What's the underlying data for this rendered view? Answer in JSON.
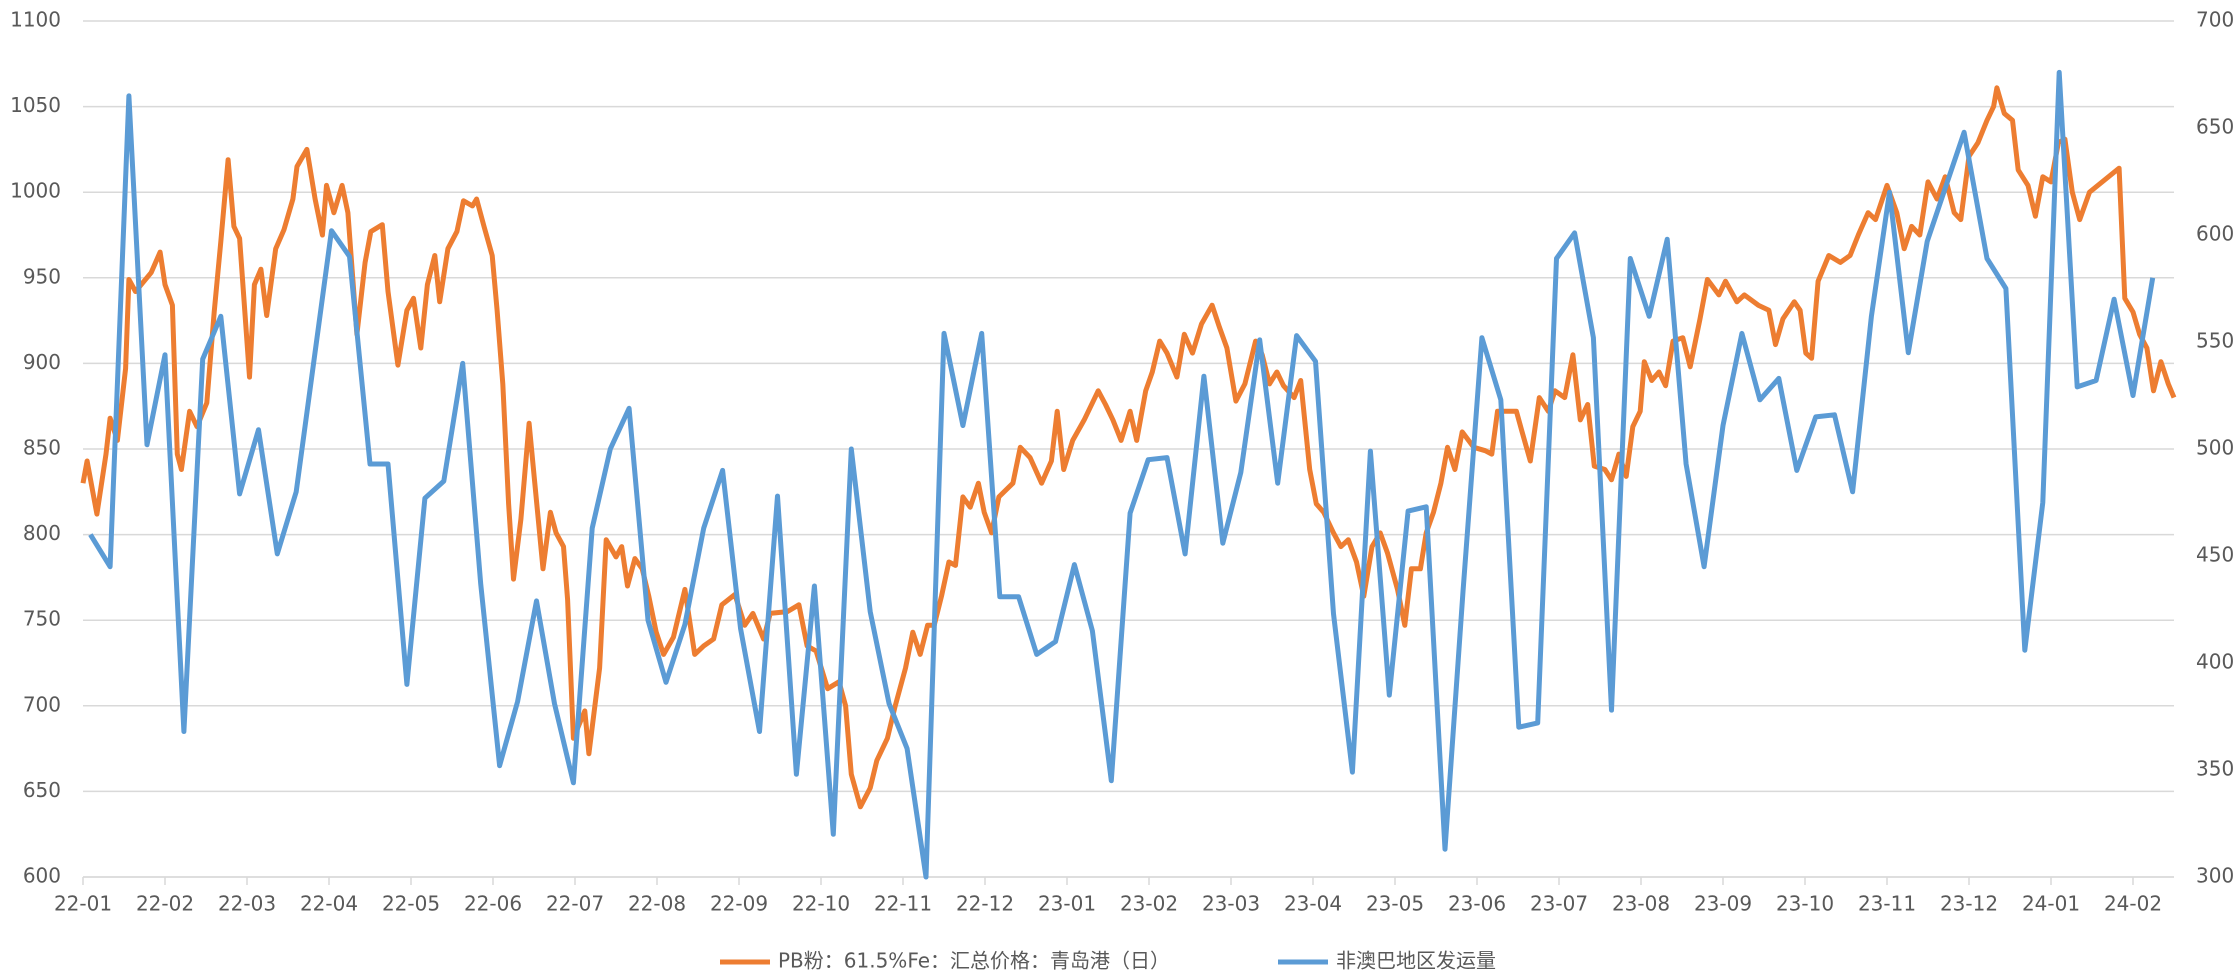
{
  "chart_data": {
    "type": "line",
    "xlim": [
      0,
      25.5
    ],
    "xticks": [
      {
        "value": 0,
        "label": "22-01"
      },
      {
        "value": 1,
        "label": "22-02"
      },
      {
        "value": 2,
        "label": "22-03"
      },
      {
        "value": 3,
        "label": "22-04"
      },
      {
        "value": 4,
        "label": "22-05"
      },
      {
        "value": 5,
        "label": "22-06"
      },
      {
        "value": 6,
        "label": "22-07"
      },
      {
        "value": 7,
        "label": "22-08"
      },
      {
        "value": 8,
        "label": "22-09"
      },
      {
        "value": 9,
        "label": "22-10"
      },
      {
        "value": 10,
        "label": "22-11"
      },
      {
        "value": 11,
        "label": "22-12"
      },
      {
        "value": 12,
        "label": "23-01"
      },
      {
        "value": 13,
        "label": "23-02"
      },
      {
        "value": 14,
        "label": "23-03"
      },
      {
        "value": 15,
        "label": "23-04"
      },
      {
        "value": 16,
        "label": "23-05"
      },
      {
        "value": 17,
        "label": "23-06"
      },
      {
        "value": 18,
        "label": "23-07"
      },
      {
        "value": 19,
        "label": "23-08"
      },
      {
        "value": 20,
        "label": "23-09"
      },
      {
        "value": 21,
        "label": "23-10"
      },
      {
        "value": 22,
        "label": "23-11"
      },
      {
        "value": 23,
        "label": "23-12"
      },
      {
        "value": 24,
        "label": "24-01"
      },
      {
        "value": 25,
        "label": "24-02"
      }
    ],
    "ylim": [
      600,
      1100
    ],
    "yticks": [
      600,
      650,
      700,
      750,
      800,
      850,
      900,
      950,
      1000,
      1050,
      1100
    ],
    "y2lim": [
      300,
      700
    ],
    "y2ticks": [
      300,
      350,
      400,
      450,
      500,
      550,
      600,
      650,
      700
    ],
    "grid": true,
    "legend": "bottom",
    "series": [
      {
        "name": "PB粉：61.5%Fe：汇总价格：青岛港（日）",
        "color": "#ed7d31",
        "x": [
          0,
          0.05,
          0.17,
          0.28,
          0.33,
          0.42,
          0.52,
          0.56,
          0.64,
          0.83,
          0.94,
          1.0,
          1.09,
          1.15,
          1.2,
          1.3,
          1.39,
          1.51,
          1.6,
          1.68,
          1.77,
          1.84,
          1.91,
          2.03,
          2.09,
          2.17,
          2.24,
          2.35,
          2.45,
          2.56,
          2.61,
          2.73,
          2.83,
          2.92,
          2.97,
          3.06,
          3.16,
          3.23,
          3.34,
          3.44,
          3.51,
          3.65,
          3.72,
          3.84,
          3.95,
          4.03,
          4.12,
          4.2,
          4.29,
          4.35,
          4.45,
          4.56,
          4.64,
          4.75,
          4.8,
          4.89,
          4.99,
          5.05,
          5.12,
          5.19,
          5.25,
          5.34,
          5.44,
          5.51,
          5.61,
          5.7,
          5.77,
          5.86,
          5.91,
          5.98,
          6.12,
          6.17,
          6.3,
          6.38,
          6.5,
          6.57,
          6.64,
          6.73,
          6.82,
          6.9,
          6.99,
          7.08,
          7.2,
          7.34,
          7.46,
          7.57,
          7.69,
          7.79,
          7.95,
          8.07,
          8.17,
          8.3,
          8.38,
          8.59,
          8.73,
          8.83,
          8.94,
          9.08,
          9.22,
          9.3,
          9.37,
          9.48,
          9.6,
          9.68,
          9.81,
          9.9,
          10.03,
          10.12,
          10.21,
          10.3,
          10.38,
          10.47,
          10.56,
          10.64,
          10.73,
          10.82,
          10.92,
          10.99,
          11.08,
          11.17,
          11.34,
          11.43,
          11.55,
          11.69,
          11.81,
          11.88,
          11.96,
          12.07,
          12.21,
          12.38,
          12.47,
          12.56,
          12.66,
          12.77,
          12.85,
          12.96,
          13.04,
          13.13,
          13.22,
          13.34,
          13.43,
          13.53,
          13.64,
          13.77,
          13.86,
          13.95,
          14.06,
          14.17,
          14.3,
          14.38,
          14.47,
          14.56,
          14.64,
          14.77,
          14.85,
          14.96,
          15.04,
          15.13,
          15.25,
          15.34,
          15.43,
          15.53,
          15.62,
          15.72,
          15.82,
          15.91,
          16.03,
          16.12,
          16.2,
          16.31,
          16.38,
          16.47,
          16.56,
          16.64,
          16.73,
          16.82,
          16.96,
          17.1,
          17.18,
          17.25,
          17.37,
          17.48,
          17.55,
          17.65,
          17.76,
          17.87,
          17.95,
          18.07,
          18.17,
          18.26,
          18.35,
          18.43,
          18.56,
          18.64,
          18.73,
          18.82,
          18.9,
          18.99,
          19.04,
          19.13,
          19.22,
          19.3,
          19.39,
          19.51,
          19.6,
          19.72,
          19.81,
          19.95,
          20.03,
          20.17,
          20.26,
          20.43,
          20.56,
          20.64,
          20.73,
          20.87,
          20.94,
          21.01,
          21.08,
          21.16,
          21.29,
          21.43,
          21.55,
          21.65,
          21.77,
          21.86,
          22.0,
          22.12,
          22.21,
          22.3,
          22.4,
          22.5,
          22.61,
          22.71,
          22.82,
          22.9,
          23.0,
          23.11,
          23.22,
          23.3,
          23.34,
          23.43,
          23.53,
          23.6,
          23.72,
          23.81,
          23.9,
          24.0,
          24.09,
          24.17,
          24.26,
          24.35,
          24.47,
          24.83,
          24.9,
          25.0,
          25.08,
          25.17,
          25.25,
          25.34,
          25.43,
          25.5
        ],
        "values": [
          830,
          843,
          812,
          847,
          868,
          855,
          897,
          949,
          942,
          953,
          965,
          946,
          934,
          847,
          838,
          872,
          863,
          877,
          930,
          971,
          1019,
          980,
          973,
          892,
          946,
          955,
          928,
          967,
          978,
          996,
          1015,
          1025,
          996,
          975,
          1004,
          988,
          1004,
          988,
          917,
          959,
          977,
          981,
          942,
          899,
          931,
          938,
          909,
          946,
          963,
          936,
          967,
          977,
          995,
          992,
          996,
          980,
          963,
          931,
          888,
          818,
          774,
          809,
          865,
          830,
          780,
          813,
          801,
          793,
          762,
          681,
          697,
          672,
          722,
          797,
          787,
          793,
          770,
          786,
          780,
          764,
          743,
          730,
          740,
          768,
          730,
          735,
          739,
          759,
          765,
          747,
          754,
          739,
          754,
          755,
          759,
          735,
          732,
          710,
          714,
          700,
          660,
          641,
          652,
          668,
          681,
          699,
          722,
          743,
          730,
          747,
          747,
          764,
          784,
          782,
          822,
          816,
          830,
          813,
          801,
          822,
          830,
          851,
          845,
          830,
          843,
          872,
          838,
          855,
          867,
          884,
          876,
          867,
          855,
          872,
          855,
          884,
          895,
          913,
          906,
          892,
          917,
          906,
          923,
          934,
          921,
          909,
          878,
          888,
          913,
          905,
          888,
          895,
          887,
          880,
          890,
          838,
          818,
          813,
          801,
          793,
          797,
          784,
          764,
          793,
          801,
          789,
          768,
          747,
          780,
          780,
          801,
          813,
          830,
          851,
          838,
          860,
          851,
          849,
          847,
          872,
          872,
          872,
          860,
          843,
          880,
          872,
          884,
          880,
          905,
          867,
          876,
          840,
          838,
          832,
          847,
          834,
          863,
          872,
          901,
          890,
          895,
          887,
          913,
          915,
          898,
          926,
          949,
          940,
          948,
          936,
          940,
          934,
          931,
          911,
          926,
          936,
          931,
          906,
          903,
          948,
          963,
          959,
          963,
          975,
          988,
          984,
          1004,
          988,
          967,
          980,
          975,
          1006,
          996,
          1009,
          988,
          984,
          1021,
          1029,
          1042,
          1050,
          1061,
          1046,
          1042,
          1013,
          1004,
          986,
          1009,
          1006,
          1029,
          1031,
          1000,
          984,
          1000,
          1014,
          938,
          930,
          917,
          909,
          884,
          901,
          888,
          880
        ]
      },
      {
        "name": "非澳巴地区发运量",
        "color": "#5b9bd5",
        "axis": "y2",
        "x": [
          0.09,
          0.33,
          0.56,
          0.78,
          1.0,
          1.23,
          1.46,
          1.68,
          1.91,
          2.14,
          2.37,
          2.6,
          3.03,
          3.25,
          3.5,
          3.72,
          3.95,
          4.17,
          4.4,
          4.63,
          4.85,
          5.08,
          5.3,
          5.53,
          5.75,
          5.98,
          6.21,
          6.43,
          6.66,
          6.89,
          7.11,
          7.34,
          7.57,
          7.8,
          8.02,
          8.25,
          8.47,
          8.7,
          8.92,
          9.15,
          9.37,
          9.6,
          9.83,
          10.05,
          10.28,
          10.5,
          10.73,
          10.96,
          11.18,
          11.41,
          11.63,
          11.86,
          12.09,
          12.31,
          12.54,
          12.77,
          12.99,
          13.22,
          13.44,
          13.67,
          13.9,
          14.12,
          14.35,
          14.57,
          14.8,
          15.03,
          15.25,
          15.48,
          15.7,
          15.93,
          16.16,
          16.38,
          16.61,
          16.83,
          17.06,
          17.29,
          17.51,
          17.74,
          17.97,
          18.19,
          18.42,
          18.64,
          18.87,
          19.1,
          19.32,
          19.55,
          19.77,
          20.0,
          20.23,
          20.45,
          20.68,
          20.9,
          21.13,
          21.36,
          21.58,
          21.81,
          22.03,
          22.26,
          22.49,
          22.94,
          23.22,
          23.45,
          23.68,
          23.9,
          24.1,
          24.32,
          24.55,
          24.77,
          25.0,
          25.24
        ],
        "values": [
          460,
          445,
          665,
          502,
          544,
          368,
          542,
          562,
          479,
          509,
          451,
          480,
          602,
          590,
          493,
          493,
          390,
          477,
          485,
          540,
          437,
          352,
          382,
          429,
          381,
          344,
          463,
          500,
          519,
          420,
          391,
          418,
          463,
          490,
          416,
          368,
          478,
          348,
          436,
          320,
          500,
          424,
          381,
          360,
          300,
          554,
          511,
          554,
          431,
          431,
          404,
          410,
          446,
          415,
          345,
          470,
          495,
          496,
          451,
          534,
          456,
          489,
          551,
          484,
          553,
          541,
          423,
          349,
          499,
          385,
          471,
          473,
          313,
          434,
          552,
          523,
          370,
          372,
          589,
          601,
          552,
          378,
          589,
          562,
          598,
          493,
          445,
          511,
          554,
          523,
          533,
          490,
          515,
          516,
          480,
          562,
          620,
          545,
          597,
          648,
          589,
          575,
          406,
          475,
          676,
          529,
          532,
          570,
          525,
          580
        ]
      }
    ]
  }
}
